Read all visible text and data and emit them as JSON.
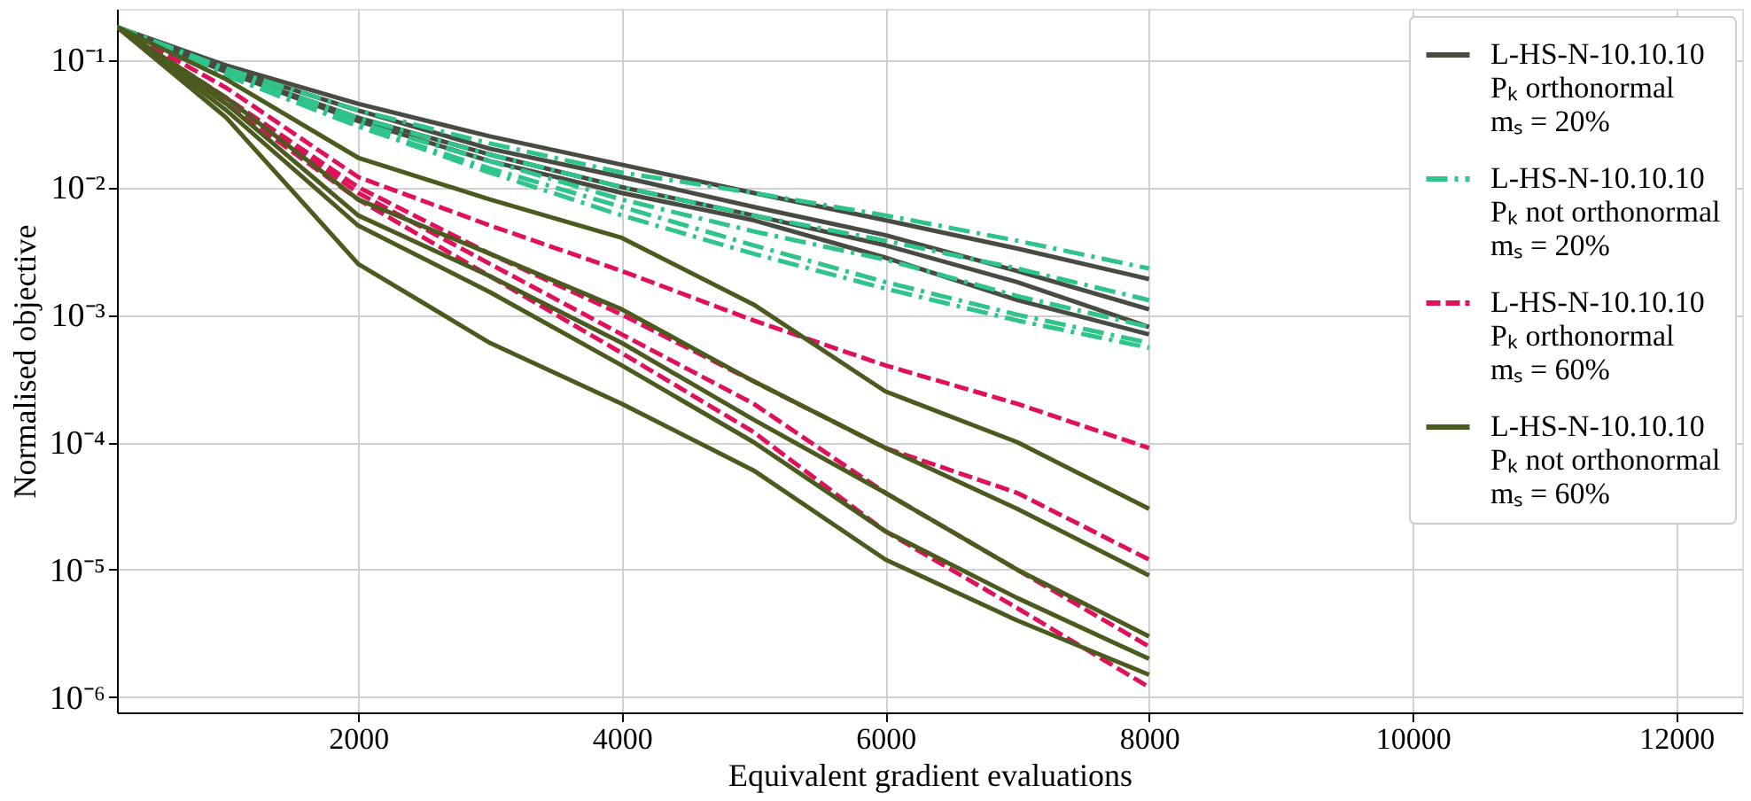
{
  "chart_data": {
    "type": "line",
    "xlabel": "Equivalent gradient evaluations",
    "ylabel": "Normalised objective",
    "x": [
      170,
      1000,
      2000,
      3000,
      4000,
      5000,
      6000,
      7000,
      8000
    ],
    "xlim": [
      170,
      12500
    ],
    "xticks": [
      2000,
      4000,
      6000,
      8000,
      10000,
      12000
    ],
    "ylim": [
      7.6e-07,
      0.25
    ],
    "log": true,
    "yticks": [
      {
        "value": 0.1,
        "label": "10⁻¹"
      },
      {
        "value": 0.01,
        "label": "10⁻²"
      },
      {
        "value": 0.001,
        "label": "10⁻³"
      },
      {
        "value": 0.0001,
        "label": "10⁻⁴"
      },
      {
        "value": 1e-05,
        "label": "10⁻⁵"
      },
      {
        "value": 1e-06,
        "label": "10⁻⁶"
      }
    ],
    "grid": true,
    "legend": "top right",
    "series": [
      {
        "name": "L-HS-N-10.10.10\nPₖ orthonormal\nmₛ = 20%",
        "color": "#474b40",
        "line_style": "solid",
        "values": [
          0.18,
          0.09,
          0.045,
          0.025,
          0.015,
          0.009,
          0.0055,
          0.0033,
          0.0019
        ]
      },
      {
        "color": "#474b40",
        "line_style": "solid",
        "values": [
          0.18,
          0.085,
          0.04,
          0.02,
          0.012,
          0.007,
          0.0042,
          0.0022,
          0.0011
        ]
      },
      {
        "color": "#474b40",
        "line_style": "solid",
        "values": [
          0.18,
          0.08,
          0.035,
          0.018,
          0.01,
          0.006,
          0.0035,
          0.0018,
          0.0008
        ]
      },
      {
        "color": "#474b40",
        "line_style": "solid",
        "values": [
          0.18,
          0.08,
          0.033,
          0.016,
          0.009,
          0.0055,
          0.0028,
          0.0013,
          0.0007
        ]
      },
      {
        "name": "L-HS-N-10.10.10\nPₖ not orthonormal\nmₛ = 20%",
        "color": "#2ec48a",
        "line_style": "dashdot",
        "values": [
          0.18,
          0.085,
          0.04,
          0.022,
          0.013,
          0.009,
          0.006,
          0.0038,
          0.0023
        ]
      },
      {
        "color": "#2ec48a",
        "line_style": "dashdot",
        "values": [
          0.18,
          0.08,
          0.035,
          0.018,
          0.01,
          0.006,
          0.0038,
          0.0023,
          0.0013
        ]
      },
      {
        "color": "#2ec48a",
        "line_style": "dashdot",
        "values": [
          0.18,
          0.08,
          0.032,
          0.016,
          0.008,
          0.0045,
          0.0027,
          0.0014,
          0.0008
        ]
      },
      {
        "color": "#2ec48a",
        "line_style": "dashdot",
        "values": [
          0.18,
          0.075,
          0.03,
          0.014,
          0.007,
          0.0035,
          0.0018,
          0.001,
          0.0006
        ]
      },
      {
        "color": "#2ec48a",
        "line_style": "dashdot",
        "values": [
          0.18,
          0.075,
          0.03,
          0.013,
          0.006,
          0.003,
          0.0016,
          0.0009,
          0.00055
        ]
      },
      {
        "name": "L-HS-N-10.10.10\nPₖ orthonormal\nmₛ = 60%",
        "color": "#e0105a",
        "line_style": "dashed",
        "values": [
          0.18,
          0.06,
          0.012,
          0.005,
          0.0022,
          0.0009,
          0.0004,
          0.0002,
          9e-05
        ]
      },
      {
        "color": "#e0105a",
        "line_style": "dashed",
        "values": [
          0.18,
          0.05,
          0.01,
          0.003,
          0.001,
          0.0003,
          9e-05,
          4e-05,
          1.2e-05
        ]
      },
      {
        "color": "#e0105a",
        "line_style": "dashed",
        "values": [
          0.18,
          0.05,
          0.009,
          0.0025,
          0.0007,
          0.0002,
          4e-05,
          1e-05,
          2.5e-06
        ]
      },
      {
        "color": "#e0105a",
        "line_style": "dashed",
        "values": [
          0.18,
          0.045,
          0.008,
          0.002,
          0.0005,
          0.00012,
          2e-05,
          5e-06,
          1.2e-06
        ]
      },
      {
        "name": "L-HS-N-10.10.10\nPₖ not orthonormal\nmₛ = 60%",
        "color": "#4b5a1f",
        "line_style": "solid",
        "values": [
          0.18,
          0.07,
          0.017,
          0.008,
          0.004,
          0.0012,
          0.00025,
          0.0001,
          3e-05
        ]
      },
      {
        "color": "#4b5a1f",
        "line_style": "solid",
        "values": [
          0.18,
          0.05,
          0.008,
          0.003,
          0.0011,
          0.0003,
          9e-05,
          3e-05,
          9e-06
        ]
      },
      {
        "color": "#4b5a1f",
        "line_style": "solid",
        "values": [
          0.18,
          0.045,
          0.006,
          0.002,
          0.0006,
          0.00015,
          4e-05,
          1e-05,
          3e-06
        ]
      },
      {
        "color": "#4b5a1f",
        "line_style": "solid",
        "values": [
          0.18,
          0.04,
          0.005,
          0.0015,
          0.0004,
          0.0001,
          2e-05,
          6e-06,
          2e-06
        ]
      },
      {
        "color": "#4b5a1f",
        "line_style": "solid",
        "values": [
          0.18,
          0.035,
          0.0025,
          0.0006,
          0.0002,
          6e-05,
          1.2e-05,
          4e-06,
          1.5e-06
        ]
      }
    ]
  }
}
